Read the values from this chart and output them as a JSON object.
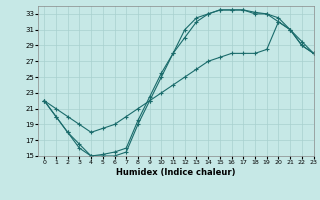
{
  "xlabel": "Humidex (Indice chaleur)",
  "bg_color": "#c6e8e6",
  "grid_color": "#a8d0ce",
  "line_color": "#1a6b6b",
  "xlim": [
    -0.5,
    23
  ],
  "ylim": [
    15,
    34
  ],
  "xticks": [
    0,
    1,
    2,
    3,
    4,
    5,
    6,
    7,
    8,
    9,
    10,
    11,
    12,
    13,
    14,
    15,
    16,
    17,
    18,
    19,
    20,
    21,
    22,
    23
  ],
  "yticks": [
    15,
    17,
    19,
    21,
    23,
    25,
    27,
    29,
    31,
    33
  ],
  "line1_x": [
    0,
    1,
    2,
    3,
    4,
    5,
    6,
    7,
    8,
    9,
    10,
    11,
    12,
    13,
    14,
    15,
    16,
    17,
    18,
    19,
    20,
    21,
    22,
    23
  ],
  "line1_y": [
    22,
    20,
    18,
    16,
    15,
    15,
    15,
    15.5,
    19,
    22,
    25,
    28,
    30,
    32,
    33,
    33.5,
    33.5,
    33.5,
    33,
    33,
    32,
    31,
    29,
    28
  ],
  "line2_x": [
    0,
    1,
    2,
    3,
    4,
    5,
    6,
    7,
    8,
    9,
    10,
    11,
    12,
    13,
    14,
    15,
    16,
    17,
    18,
    19,
    20,
    21,
    22,
    23
  ],
  "line2_y": [
    22,
    20,
    18,
    16.5,
    15,
    15.2,
    15.5,
    16,
    19.5,
    22.5,
    25.5,
    28,
    31,
    32.5,
    33,
    33.5,
    33.5,
    33.5,
    33.2,
    33,
    32.5,
    31,
    29,
    28
  ],
  "line3_x": [
    0,
    1,
    2,
    3,
    4,
    5,
    6,
    7,
    8,
    9,
    10,
    11,
    12,
    13,
    14,
    15,
    16,
    17,
    18,
    19,
    20,
    21,
    22,
    23
  ],
  "line3_y": [
    22,
    21,
    20,
    19,
    18,
    18.5,
    19,
    20,
    21,
    22,
    23,
    24,
    25,
    26,
    27,
    27.5,
    28,
    28,
    28,
    28.5,
    32,
    31,
    29.5,
    28
  ]
}
